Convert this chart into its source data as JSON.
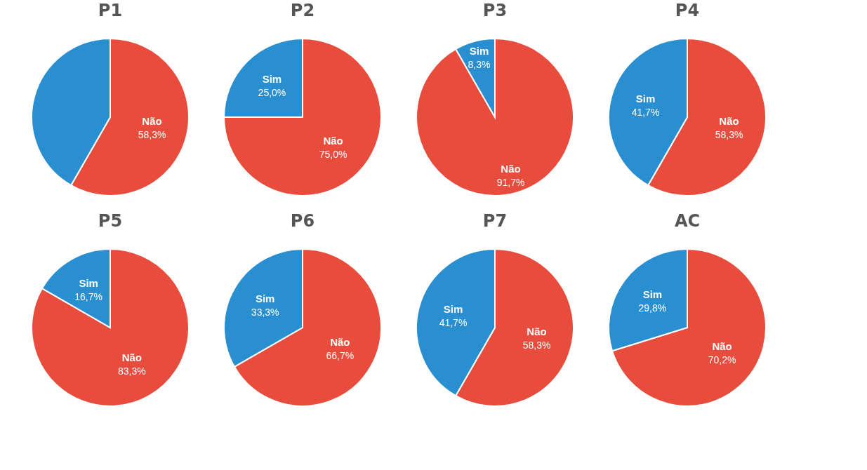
{
  "chart_data": [
    {
      "type": "pie",
      "title": "P1",
      "categories": [
        "Não",
        null
      ],
      "values": [
        58.3,
        41.7
      ],
      "value_labels": [
        "58,3%",
        null
      ],
      "colors": [
        "#e84c3d",
        "#2a8fd1"
      ]
    },
    {
      "type": "pie",
      "title": "P2",
      "categories": [
        "Não",
        "Sim"
      ],
      "values": [
        75.0,
        25.0
      ],
      "value_labels": [
        "75,0%",
        "25,0%"
      ],
      "colors": [
        "#e84c3d",
        "#2a8fd1"
      ]
    },
    {
      "type": "pie",
      "title": "P3",
      "categories": [
        "Não",
        "Sim"
      ],
      "values": [
        91.7,
        8.3
      ],
      "value_labels": [
        "91,7%",
        "8,3%"
      ],
      "colors": [
        "#e84c3d",
        "#2a8fd1"
      ]
    },
    {
      "type": "pie",
      "title": "P4",
      "categories": [
        "Não",
        "Sim"
      ],
      "values": [
        58.3,
        41.7
      ],
      "value_labels": [
        "58,3%",
        "41,7%"
      ],
      "colors": [
        "#e84c3d",
        "#2a8fd1"
      ]
    },
    {
      "type": "pie",
      "title": "P5",
      "categories": [
        "Não",
        "Sim"
      ],
      "values": [
        83.3,
        16.7
      ],
      "value_labels": [
        "83,3%",
        "16,7%"
      ],
      "colors": [
        "#e84c3d",
        "#2a8fd1"
      ]
    },
    {
      "type": "pie",
      "title": "P6",
      "categories": [
        "Não",
        "Sim"
      ],
      "values": [
        66.7,
        33.3
      ],
      "value_labels": [
        "66,7%",
        "33,3%"
      ],
      "colors": [
        "#e84c3d",
        "#2a8fd1"
      ]
    },
    {
      "type": "pie",
      "title": "P7",
      "categories": [
        "Não",
        "Sim"
      ],
      "values": [
        58.3,
        41.7
      ],
      "value_labels": [
        "58,3%",
        "41,7%"
      ],
      "colors": [
        "#e84c3d",
        "#2a8fd1"
      ]
    },
    {
      "type": "pie",
      "title": "AC",
      "categories": [
        "Não",
        "Sim"
      ],
      "values": [
        70.2,
        29.8
      ],
      "value_labels": [
        "70,2%",
        "29,8%"
      ],
      "colors": [
        "#e84c3d",
        "#2a8fd1"
      ]
    }
  ]
}
